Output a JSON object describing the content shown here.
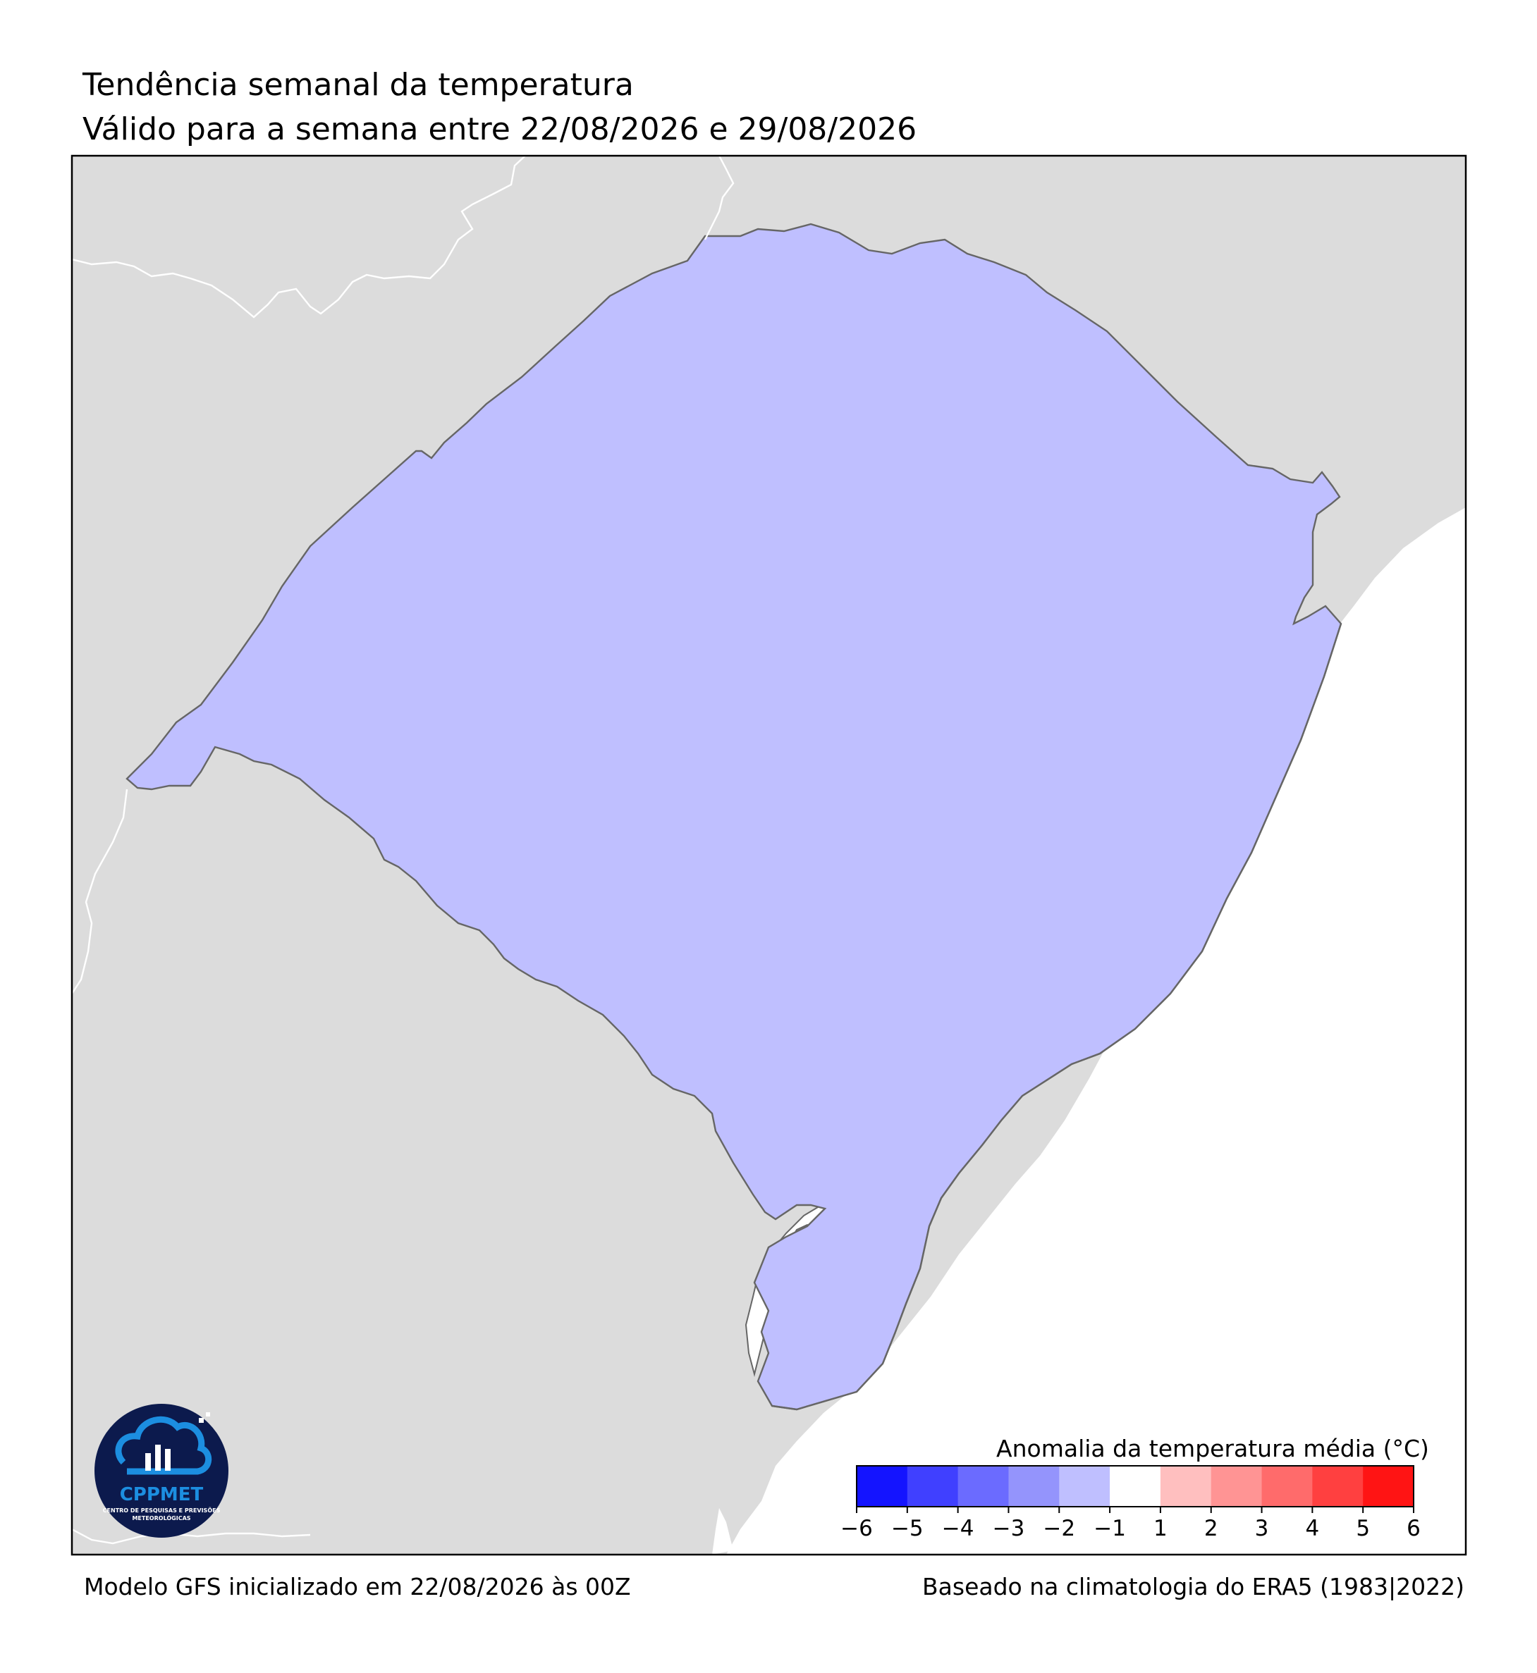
{
  "title": "Tendência semanal da temperatura",
  "subtitle": "Válido para a semana entre 22/08/2026 e 29/08/2026",
  "footer": {
    "left": "Modelo GFS inicializado em 22/08/2026 às 00Z",
    "right": "Baseado na climatologia do ERA5 (1983|2022)"
  },
  "logo": {
    "name": "CPPMET",
    "tagline_1": "CENTRO DE PESQUISAS E PREVISÕES",
    "tagline_2": "METEOROLÓGICAS"
  },
  "colorbar": {
    "title": "Anomalia da temperatura média (°C)",
    "tick_labels": [
      "−6",
      "−5",
      "−4",
      "−3",
      "−2",
      "−1",
      "1",
      "2",
      "3",
      "4",
      "5",
      "6"
    ],
    "bins": [
      {
        "from": -6,
        "to": -5,
        "color": "#1414ff"
      },
      {
        "from": -5,
        "to": -4,
        "color": "#4040ff"
      },
      {
        "from": -4,
        "to": -3,
        "color": "#6b6bff"
      },
      {
        "from": -3,
        "to": -2,
        "color": "#9494fc"
      },
      {
        "from": -2,
        "to": -1,
        "color": "#bfbfff"
      },
      {
        "from": -1,
        "to": 1,
        "color": "#ffffff"
      },
      {
        "from": 1,
        "to": 2,
        "color": "#ffbfbf"
      },
      {
        "from": 2,
        "to": 3,
        "color": "#ff9494"
      },
      {
        "from": 3,
        "to": 4,
        "color": "#ff6b6b"
      },
      {
        "from": 4,
        "to": 5,
        "color": "#ff4040"
      },
      {
        "from": 5,
        "to": 6,
        "color": "#ff1414"
      }
    ]
  },
  "map_colors": {
    "neighbor_land": "#dcdcdc",
    "ocean": "#ffffff",
    "border": "#666666",
    "frame": "#000000"
  }
}
